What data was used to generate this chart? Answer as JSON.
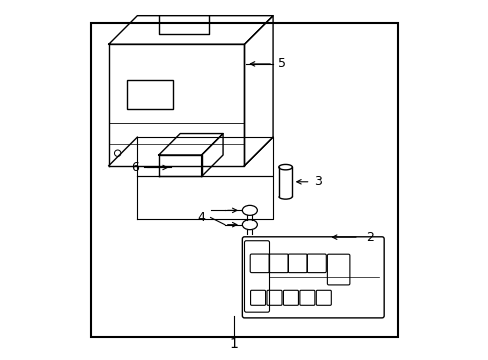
{
  "bg_color": "#ffffff",
  "line_color": "#000000",
  "border": [
    0.07,
    0.06,
    0.93,
    0.94
  ],
  "label1": "1",
  "label2": "2",
  "label3": "3",
  "label4": "4",
  "label5": "5",
  "label6": "6",
  "figsize": [
    4.89,
    3.6
  ],
  "dpi": 100
}
